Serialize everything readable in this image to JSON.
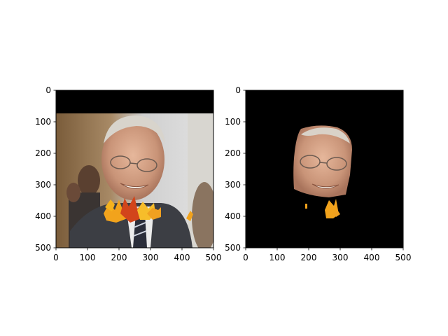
{
  "chart_data": [
    {
      "type": "image",
      "title": "",
      "xlabel": "",
      "ylabel": "",
      "xlim": [
        0,
        500
      ],
      "ylim": [
        500,
        0
      ],
      "xticks": [
        0,
        100,
        200,
        300,
        400,
        500
      ],
      "yticks": [
        0,
        100,
        200,
        300,
        400,
        500
      ],
      "content": "photo-with-autumn-leaves",
      "black_band": [
        0,
        72
      ]
    },
    {
      "type": "image",
      "title": "",
      "xlabel": "",
      "ylabel": "",
      "xlim": [
        0,
        500
      ],
      "ylim": [
        500,
        0
      ],
      "xticks": [
        0,
        100,
        200,
        300,
        400,
        500
      ],
      "yticks": [
        0,
        100,
        200,
        300,
        400,
        500
      ],
      "content": "segmented-face-mask"
    }
  ],
  "colors": {
    "axes_edge": "#000000",
    "mask_background": "#000000",
    "leaf_orange": "#f2a31c",
    "leaf_red": "#d2451b",
    "skin": "#d9a98a"
  }
}
